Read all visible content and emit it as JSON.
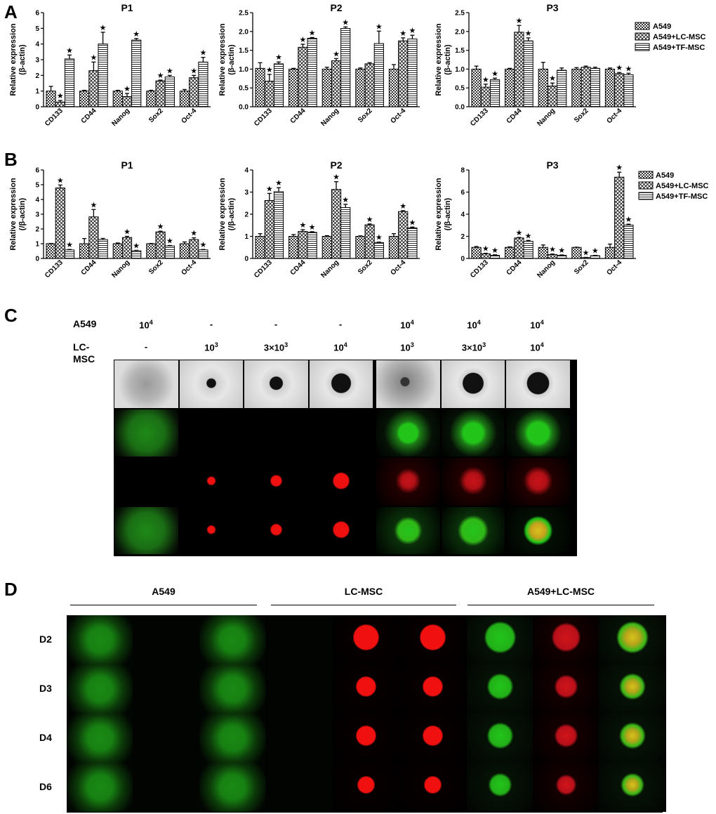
{
  "panels": {
    "A": "A",
    "B": "B",
    "C": "C",
    "D": "D"
  },
  "legend": [
    "A549",
    "A549+LC-MSC",
    "A549+TF-MSC"
  ],
  "colors": {
    "bar_fill": "#ffffff",
    "bar_stroke": "#000000",
    "green": "#22c41a",
    "red": "#f01010",
    "yellow": "#d6c21c"
  },
  "ylabel_lines": [
    "Relative expression",
    "(β-actin)"
  ],
  "ylabel_lines_b": [
    "Relative expression",
    "(/β-actin)"
  ],
  "chart_data": [
    {
      "id": "A-P1",
      "type": "bar",
      "title": "P1",
      "categories": [
        "CD133",
        "CD44",
        "Nanog",
        "Sox2",
        "Oct-4"
      ],
      "ylim": [
        0,
        6
      ],
      "ticks": [
        0,
        1,
        2,
        3,
        4,
        5,
        6
      ],
      "series": [
        {
          "values": [
            1.0,
            1.0,
            1.0,
            1.0,
            1.0
          ]
        },
        {
          "values": [
            0.3,
            2.3,
            0.65,
            1.65,
            1.85
          ]
        },
        {
          "values": [
            3.05,
            4.0,
            4.25,
            1.9,
            2.85
          ]
        }
      ],
      "errors": [
        [
          0.3,
          0.05,
          0.05,
          0.05,
          0.1
        ],
        [
          0.1,
          0.55,
          0.2,
          0.05,
          0.15
        ],
        [
          0.25,
          0.75,
          0.1,
          0.1,
          0.3
        ]
      ],
      "stars": [
        [
          false,
          false,
          false,
          false,
          false
        ],
        [
          true,
          true,
          true,
          true,
          true
        ],
        [
          true,
          true,
          true,
          true,
          true
        ]
      ]
    },
    {
      "id": "A-P2",
      "type": "bar",
      "title": "P2",
      "categories": [
        "CD133",
        "CD44",
        "Nanog",
        "Sox2",
        "Oct-4"
      ],
      "ylim": [
        0,
        2.5
      ],
      "ticks": [
        0.0,
        0.5,
        1.0,
        1.5,
        2.0,
        2.5
      ],
      "series": [
        {
          "values": [
            1.02,
            1.0,
            1.0,
            1.0,
            1.0
          ]
        },
        {
          "values": [
            0.68,
            1.58,
            1.22,
            1.14,
            1.75
          ]
        },
        {
          "values": [
            1.14,
            1.82,
            2.08,
            1.68,
            1.8
          ]
        }
      ],
      "errors": [
        [
          0.15,
          0.02,
          0.05,
          0.03,
          0.12
        ],
        [
          0.18,
          0.08,
          0.06,
          0.03,
          0.08
        ],
        [
          0.05,
          0.02,
          0.04,
          0.33,
          0.1
        ]
      ],
      "stars": [
        [
          false,
          false,
          false,
          false,
          false
        ],
        [
          true,
          true,
          true,
          false,
          true
        ],
        [
          true,
          true,
          true,
          true,
          true
        ]
      ]
    },
    {
      "id": "A-P3",
      "type": "bar",
      "title": "P3",
      "categories": [
        "CD133",
        "CD44",
        "Nanog",
        "Sox2",
        "Oct-4"
      ],
      "ylim": [
        0,
        2.5
      ],
      "ticks": [
        0.0,
        0.5,
        1.0,
        1.5,
        2.0,
        2.5
      ],
      "series": [
        {
          "values": [
            1.0,
            1.0,
            1.0,
            1.0,
            1.0
          ]
        },
        {
          "values": [
            0.52,
            1.98,
            0.55,
            1.05,
            0.88
          ]
        },
        {
          "values": [
            0.72,
            1.75,
            0.97,
            1.02,
            0.85
          ]
        }
      ],
      "errors": [
        [
          0.08,
          0.02,
          0.18,
          0.04,
          0.03
        ],
        [
          0.08,
          0.18,
          0.08,
          0.03,
          0.03
        ],
        [
          0.04,
          0.08,
          0.06,
          0.03,
          0.04
        ]
      ],
      "stars": [
        [
          false,
          false,
          false,
          false,
          false
        ],
        [
          true,
          true,
          true,
          false,
          true
        ],
        [
          true,
          true,
          false,
          false,
          true
        ]
      ]
    },
    {
      "id": "B-P1",
      "type": "bar",
      "title": "P1",
      "categories": [
        "CD133",
        "CD44",
        "Nanog",
        "Sox2",
        "Oct-4"
      ],
      "ylim": [
        0,
        6
      ],
      "ticks": [
        0,
        1,
        2,
        3,
        4,
        5,
        6
      ],
      "series": [
        {
          "values": [
            1.0,
            1.0,
            1.0,
            1.0,
            1.0
          ]
        },
        {
          "values": [
            4.78,
            2.82,
            1.42,
            1.8,
            1.28
          ]
        },
        {
          "values": [
            0.58,
            1.28,
            0.52,
            0.85,
            0.58
          ]
        }
      ],
      "errors": [
        [
          0.02,
          0.35,
          0.05,
          0.02,
          0.12
        ],
        [
          0.2,
          0.5,
          0.08,
          0.05,
          0.12
        ],
        [
          0.03,
          0.08,
          0.03,
          0.03,
          0.03
        ]
      ],
      "stars": [
        [
          false,
          false,
          false,
          false,
          false
        ],
        [
          true,
          true,
          true,
          true,
          true
        ],
        [
          true,
          false,
          true,
          true,
          true
        ]
      ]
    },
    {
      "id": "B-P2",
      "type": "bar",
      "title": "P2",
      "categories": [
        "CD133",
        "CD44",
        "Nanog",
        "Sox2",
        "Oct-4"
      ],
      "ylim": [
        0,
        4
      ],
      "ticks": [
        0,
        1,
        2,
        3,
        4
      ],
      "series": [
        {
          "values": [
            1.0,
            1.0,
            1.0,
            1.0,
            1.0
          ]
        },
        {
          "values": [
            2.62,
            1.22,
            3.12,
            1.52,
            2.12
          ]
        },
        {
          "values": [
            3.02,
            1.18,
            2.3,
            0.72,
            1.38
          ]
        }
      ],
      "errors": [
        [
          0.12,
          0.08,
          0.03,
          0.02,
          0.12
        ],
        [
          0.32,
          0.08,
          0.35,
          0.04,
          0.04
        ],
        [
          0.18,
          0.03,
          0.15,
          0.02,
          0.04
        ]
      ],
      "stars": [
        [
          false,
          false,
          false,
          false,
          false
        ],
        [
          true,
          true,
          true,
          true,
          true
        ],
        [
          true,
          true,
          true,
          true,
          true
        ]
      ]
    },
    {
      "id": "B-P3",
      "type": "bar",
      "title": "P3",
      "categories": [
        "CD133",
        "CD44",
        "Nanog",
        "Sox2",
        "Oct-4"
      ],
      "ylim": [
        0,
        8
      ],
      "ticks": [
        0,
        2,
        4,
        6,
        8
      ],
      "series": [
        {
          "values": [
            1.0,
            1.0,
            1.0,
            1.0,
            1.0
          ]
        },
        {
          "values": [
            0.42,
            1.85,
            0.35,
            0.08,
            7.35
          ]
        },
        {
          "values": [
            0.28,
            1.55,
            0.28,
            0.25,
            3.02
          ]
        }
      ],
      "errors": [
        [
          0.08,
          0.05,
          0.22,
          0.02,
          0.3
        ],
        [
          0.05,
          0.05,
          0.05,
          0.02,
          0.45
        ],
        [
          0.05,
          0.08,
          0.04,
          0.03,
          0.08
        ]
      ],
      "stars": [
        [
          false,
          false,
          false,
          false,
          false
        ],
        [
          true,
          true,
          true,
          true,
          true
        ],
        [
          true,
          true,
          true,
          true,
          true
        ]
      ]
    }
  ],
  "panel_c": {
    "row_labels": [
      "A549",
      "LC-",
      "MSC"
    ],
    "a549": [
      [
        "10",
        "4"
      ],
      [
        "-",
        ""
      ],
      [
        "-",
        ""
      ],
      [
        "-",
        ""
      ],
      [
        "10",
        "4"
      ],
      [
        "10",
        "4"
      ],
      [
        "10",
        "4"
      ]
    ],
    "lcmsc": [
      [
        "-",
        ""
      ],
      [
        "10",
        "3"
      ],
      [
        "3×10",
        "3"
      ],
      [
        "10",
        "4"
      ],
      [
        "10",
        "3"
      ],
      [
        "3×10",
        "3"
      ],
      [
        "10",
        "4"
      ]
    ]
  },
  "panel_d": {
    "groups": [
      "A549",
      "LC-MSC",
      "A549+LC-MSC"
    ],
    "rows": [
      "D2",
      "D3",
      "D4",
      "D6"
    ]
  }
}
